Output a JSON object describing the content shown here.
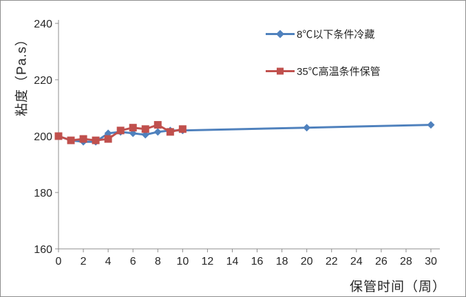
{
  "chart": {
    "colors": {
      "axis": "#8c8c8c",
      "text": "#262626",
      "background": "#ffffff",
      "series_cold": "#4F81BD",
      "series_hot": "#C0504D"
    }
  },
  "chart_data": {
    "type": "line",
    "title": "",
    "xlabel": "保管时间（周）",
    "ylabel": "粘度（Pa.s）",
    "xlim": [
      0,
      30
    ],
    "ylim": [
      160,
      240
    ],
    "x_ticks": [
      0,
      2,
      4,
      6,
      8,
      10,
      12,
      14,
      16,
      18,
      20,
      22,
      24,
      26,
      28,
      30
    ],
    "y_ticks": [
      160,
      180,
      200,
      220,
      240
    ],
    "grid": false,
    "legend_position": "inside-top-center",
    "series": [
      {
        "name": "8℃以下条件冷藏",
        "color": "#4F81BD",
        "marker": "diamond",
        "x": [
          0,
          1,
          2,
          3,
          4,
          5,
          6,
          7,
          8,
          9,
          10,
          20,
          30
        ],
        "y": [
          200,
          198.5,
          198,
          198,
          201,
          201.5,
          201,
          200.5,
          201.5,
          202,
          202,
          203,
          204
        ]
      },
      {
        "name": "35℃高温条件保管",
        "color": "#C0504D",
        "marker": "square",
        "x": [
          0,
          1,
          2,
          3,
          4,
          5,
          6,
          7,
          8,
          9,
          10
        ],
        "y": [
          200,
          198.5,
          199,
          198.5,
          199,
          202,
          203,
          202.5,
          204,
          201.5,
          202.5
        ]
      }
    ]
  }
}
